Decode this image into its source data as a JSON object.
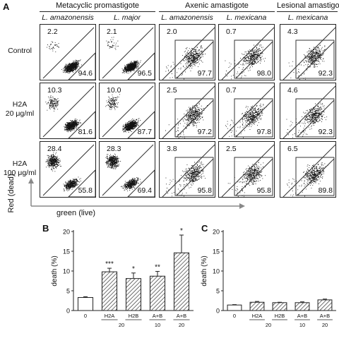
{
  "figure": {
    "panel_labels": [
      "A",
      "B",
      "C"
    ],
    "group_headers": {
      "metacyclic": "Metacyclic promastigote",
      "axenic": "Axenic amastigote",
      "lesional": "Lesional amastigote"
    },
    "column_species": [
      "L. amazonensis",
      "L. major",
      "L. amazonensis",
      "L. mexicana",
      "L. mexicana"
    ],
    "row_labels": [
      {
        "line1": "Control",
        "line2": ""
      },
      {
        "line1": "H2A",
        "line2": "20 μg/ml"
      },
      {
        "line1": "H2A",
        "line2": "100 μg/ml"
      }
    ],
    "flow_values": [
      [
        {
          "upper": "2.2",
          "lower": "94.6"
        },
        {
          "upper": "2.1",
          "lower": "96.5"
        },
        {
          "upper": "2.0",
          "lower": "97.7"
        },
        {
          "upper": "0.7",
          "lower": "98.0"
        },
        {
          "upper": "4.3",
          "lower": "92.3"
        }
      ],
      [
        {
          "upper": "10.3",
          "lower": "81.6"
        },
        {
          "upper": "10.0",
          "lower": "87.7"
        },
        {
          "upper": "2.5",
          "lower": "97.2"
        },
        {
          "upper": "0.7",
          "lower": "97.8"
        },
        {
          "upper": "4.6",
          "lower": "92.3"
        }
      ],
      [
        {
          "upper": "28.4",
          "lower": "55.8"
        },
        {
          "upper": "28.3",
          "lower": "69.4"
        },
        {
          "upper": "3.8",
          "lower": "95.8"
        },
        {
          "upper": "2.5",
          "lower": "95.8"
        },
        {
          "upper": "6.5",
          "lower": "89.8"
        }
      ]
    ],
    "axis_y_label": "Red (dead)",
    "axis_x_label": "green (live)",
    "colors": {
      "ink": "#111111",
      "hatch": "#333333"
    }
  },
  "chart_data": [
    {
      "type": "bar",
      "panel": "B",
      "categories": [
        "0",
        "H2A",
        "H2B",
        "A+B",
        "A+B"
      ],
      "sublabels": [
        "",
        "20",
        "",
        "10",
        "20"
      ],
      "values": [
        3.3,
        9.8,
        8.1,
        8.7,
        14.6
      ],
      "errors": [
        0.2,
        0.9,
        1.4,
        1.2,
        4.5
      ],
      "significance": [
        "",
        "***",
        "*",
        "**",
        "*"
      ],
      "ylabel": "death (%)",
      "ylim": [
        0,
        20
      ],
      "yticks": [
        0,
        5,
        10,
        15,
        20
      ],
      "grid": false
    },
    {
      "type": "bar",
      "panel": "C",
      "categories": [
        "0",
        "H2A",
        "H2B",
        "A+B",
        "A+B"
      ],
      "sublabels": [
        "",
        "20",
        "",
        "10",
        "20"
      ],
      "values": [
        1.4,
        2.1,
        2.0,
        2.0,
        2.7
      ],
      "errors": [
        0.1,
        0.2,
        0.1,
        0.2,
        0.2
      ],
      "significance": [
        "",
        "",
        "",
        "",
        ""
      ],
      "ylabel": "death (%)",
      "ylim": [
        0,
        20
      ],
      "yticks": [
        0,
        5,
        10,
        15,
        20
      ],
      "grid": false
    }
  ]
}
